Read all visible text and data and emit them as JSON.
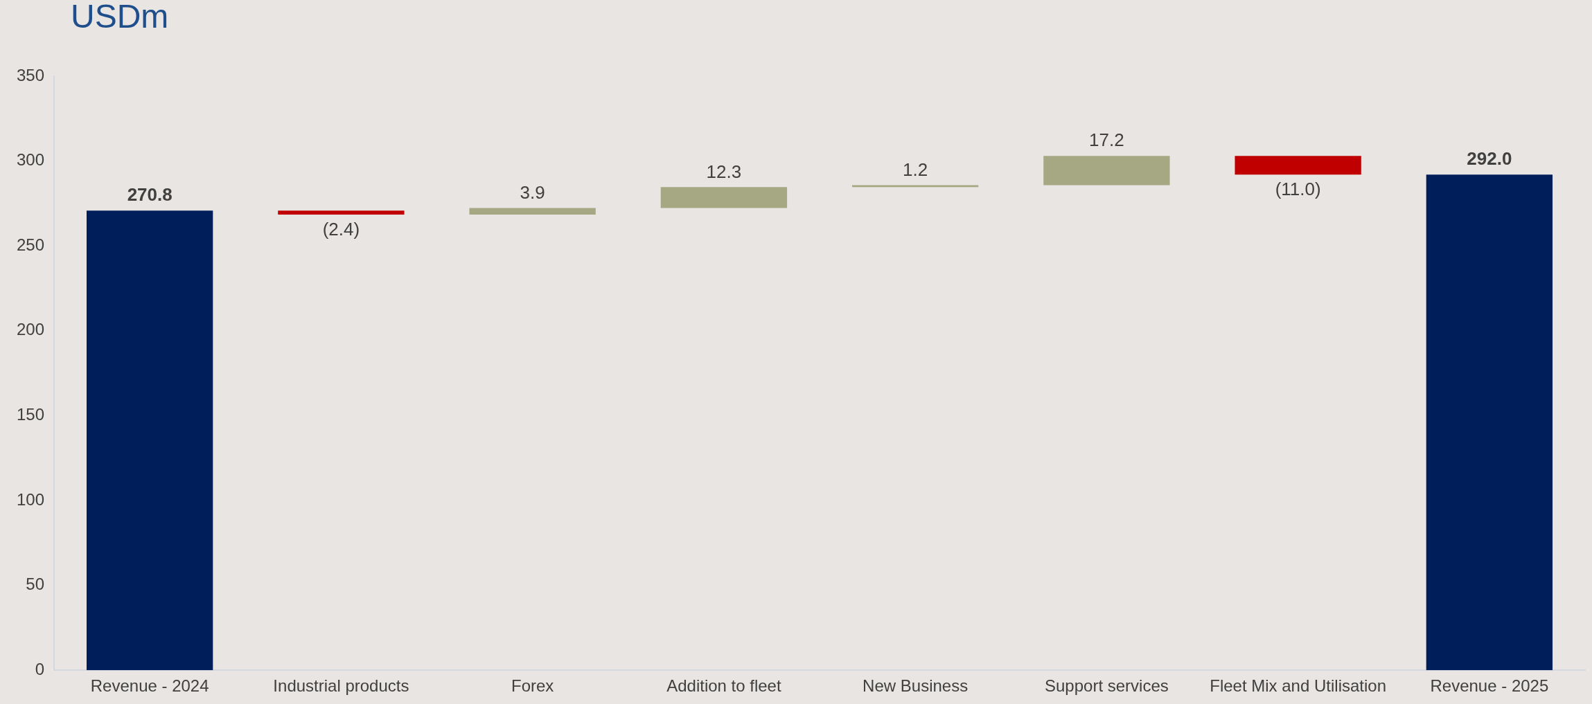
{
  "chart_data": {
    "type": "bar",
    "title": "USDm",
    "categories": [
      "Revenue - 2024",
      "Industrial products",
      "Forex",
      "Addition to fleet",
      "New Business",
      "Support services",
      "Fleet Mix and Utilisation",
      "Revenue - 2025"
    ],
    "values": [
      270.8,
      -2.4,
      3.9,
      12.3,
      1.2,
      17.2,
      -11.0,
      292.0
    ],
    "base": [
      0,
      270.8,
      268.4,
      272.3,
      284.6,
      285.8,
      303.0,
      0
    ],
    "colors": [
      "#001e5a",
      "#c00000",
      "#a5a883",
      "#a5a883",
      "#a5a883",
      "#a5a883",
      "#c00000",
      "#001e5a"
    ],
    "value_labels": [
      "270.8",
      "(2.4)",
      "3.9",
      "12.3",
      "1.2",
      "17.2",
      "(11.0)",
      "292.0"
    ],
    "ylim": [
      0,
      350
    ],
    "yticks": [
      0,
      50,
      100,
      150,
      200,
      250,
      300,
      350
    ],
    "grid": false
  }
}
